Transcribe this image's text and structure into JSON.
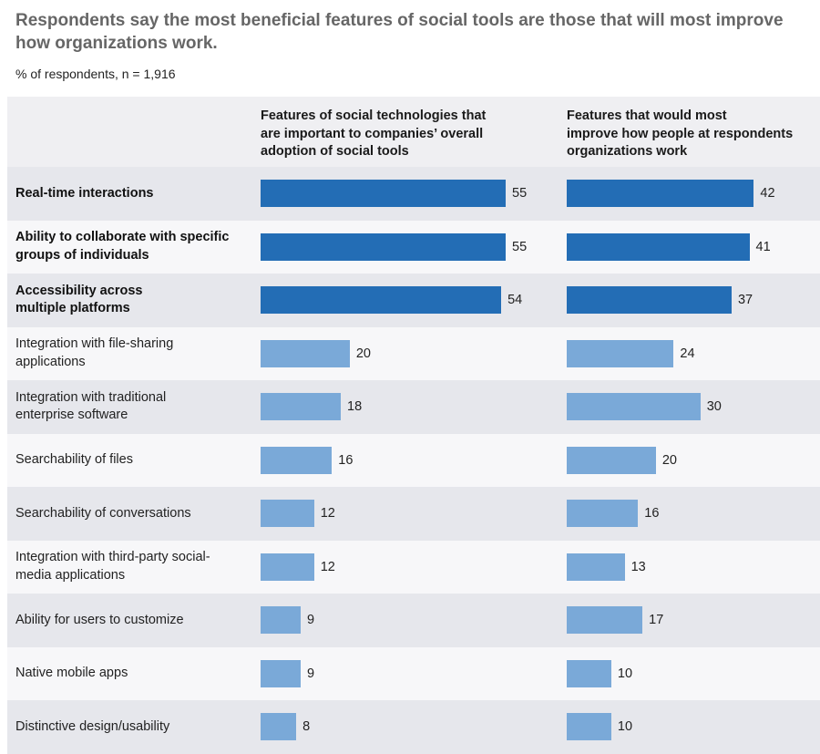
{
  "title": "Respondents say the most beneficial features of social tools are those that will most improve how organizations work.",
  "subtitle": "% of respondents,  n = 1,916",
  "colors": {
    "highlight": "#236db5",
    "normal": "#7aa9d8"
  },
  "chart_data": {
    "type": "bar",
    "orientation": "horizontal",
    "categories": [
      "Real-time interactions",
      "Ability to collaborate with specific groups of individuals",
      "Accessibility across multiple platforms",
      "Integration with file-sharing applications",
      "Integration with traditional enterprise software",
      "Searchability of files",
      "Searchability of conversations",
      "Integration with third-party social-media applications",
      "Ability for users to customize",
      "Native mobile apps",
      "Distinctive design/usability"
    ],
    "category_display": [
      "Real-time interactions",
      "Ability to collaborate with specific\ngroups of individuals",
      "Accessibility across\nmultiple platforms",
      "Integration with file-sharing\napplications",
      "Integration with traditional\nenterprise software",
      "Searchability of files",
      "Searchability of conversations",
      "Integration with third-party social-\nmedia applications",
      "Ability for users to customize",
      "Native mobile apps",
      "Distinctive design/usability"
    ],
    "highlighted": [
      true,
      true,
      true,
      false,
      false,
      false,
      false,
      false,
      false,
      false,
      false
    ],
    "series": [
      {
        "name": "Features of social technologies that are important to companies’ overall adoption of social tools",
        "display_name": "Features of social technologies that\nare important to companies’ overall\nadoption of social tools",
        "values": [
          55,
          55,
          54,
          20,
          18,
          16,
          12,
          12,
          9,
          9,
          8
        ]
      },
      {
        "name": "Features that would most improve how people at respondents organizations work",
        "display_name": "Features that would most\nimprove how people at respondents\norganizations work",
        "values": [
          42,
          41,
          37,
          24,
          30,
          20,
          16,
          13,
          17,
          10,
          10
        ]
      }
    ],
    "xlim": [
      0,
      55
    ]
  }
}
